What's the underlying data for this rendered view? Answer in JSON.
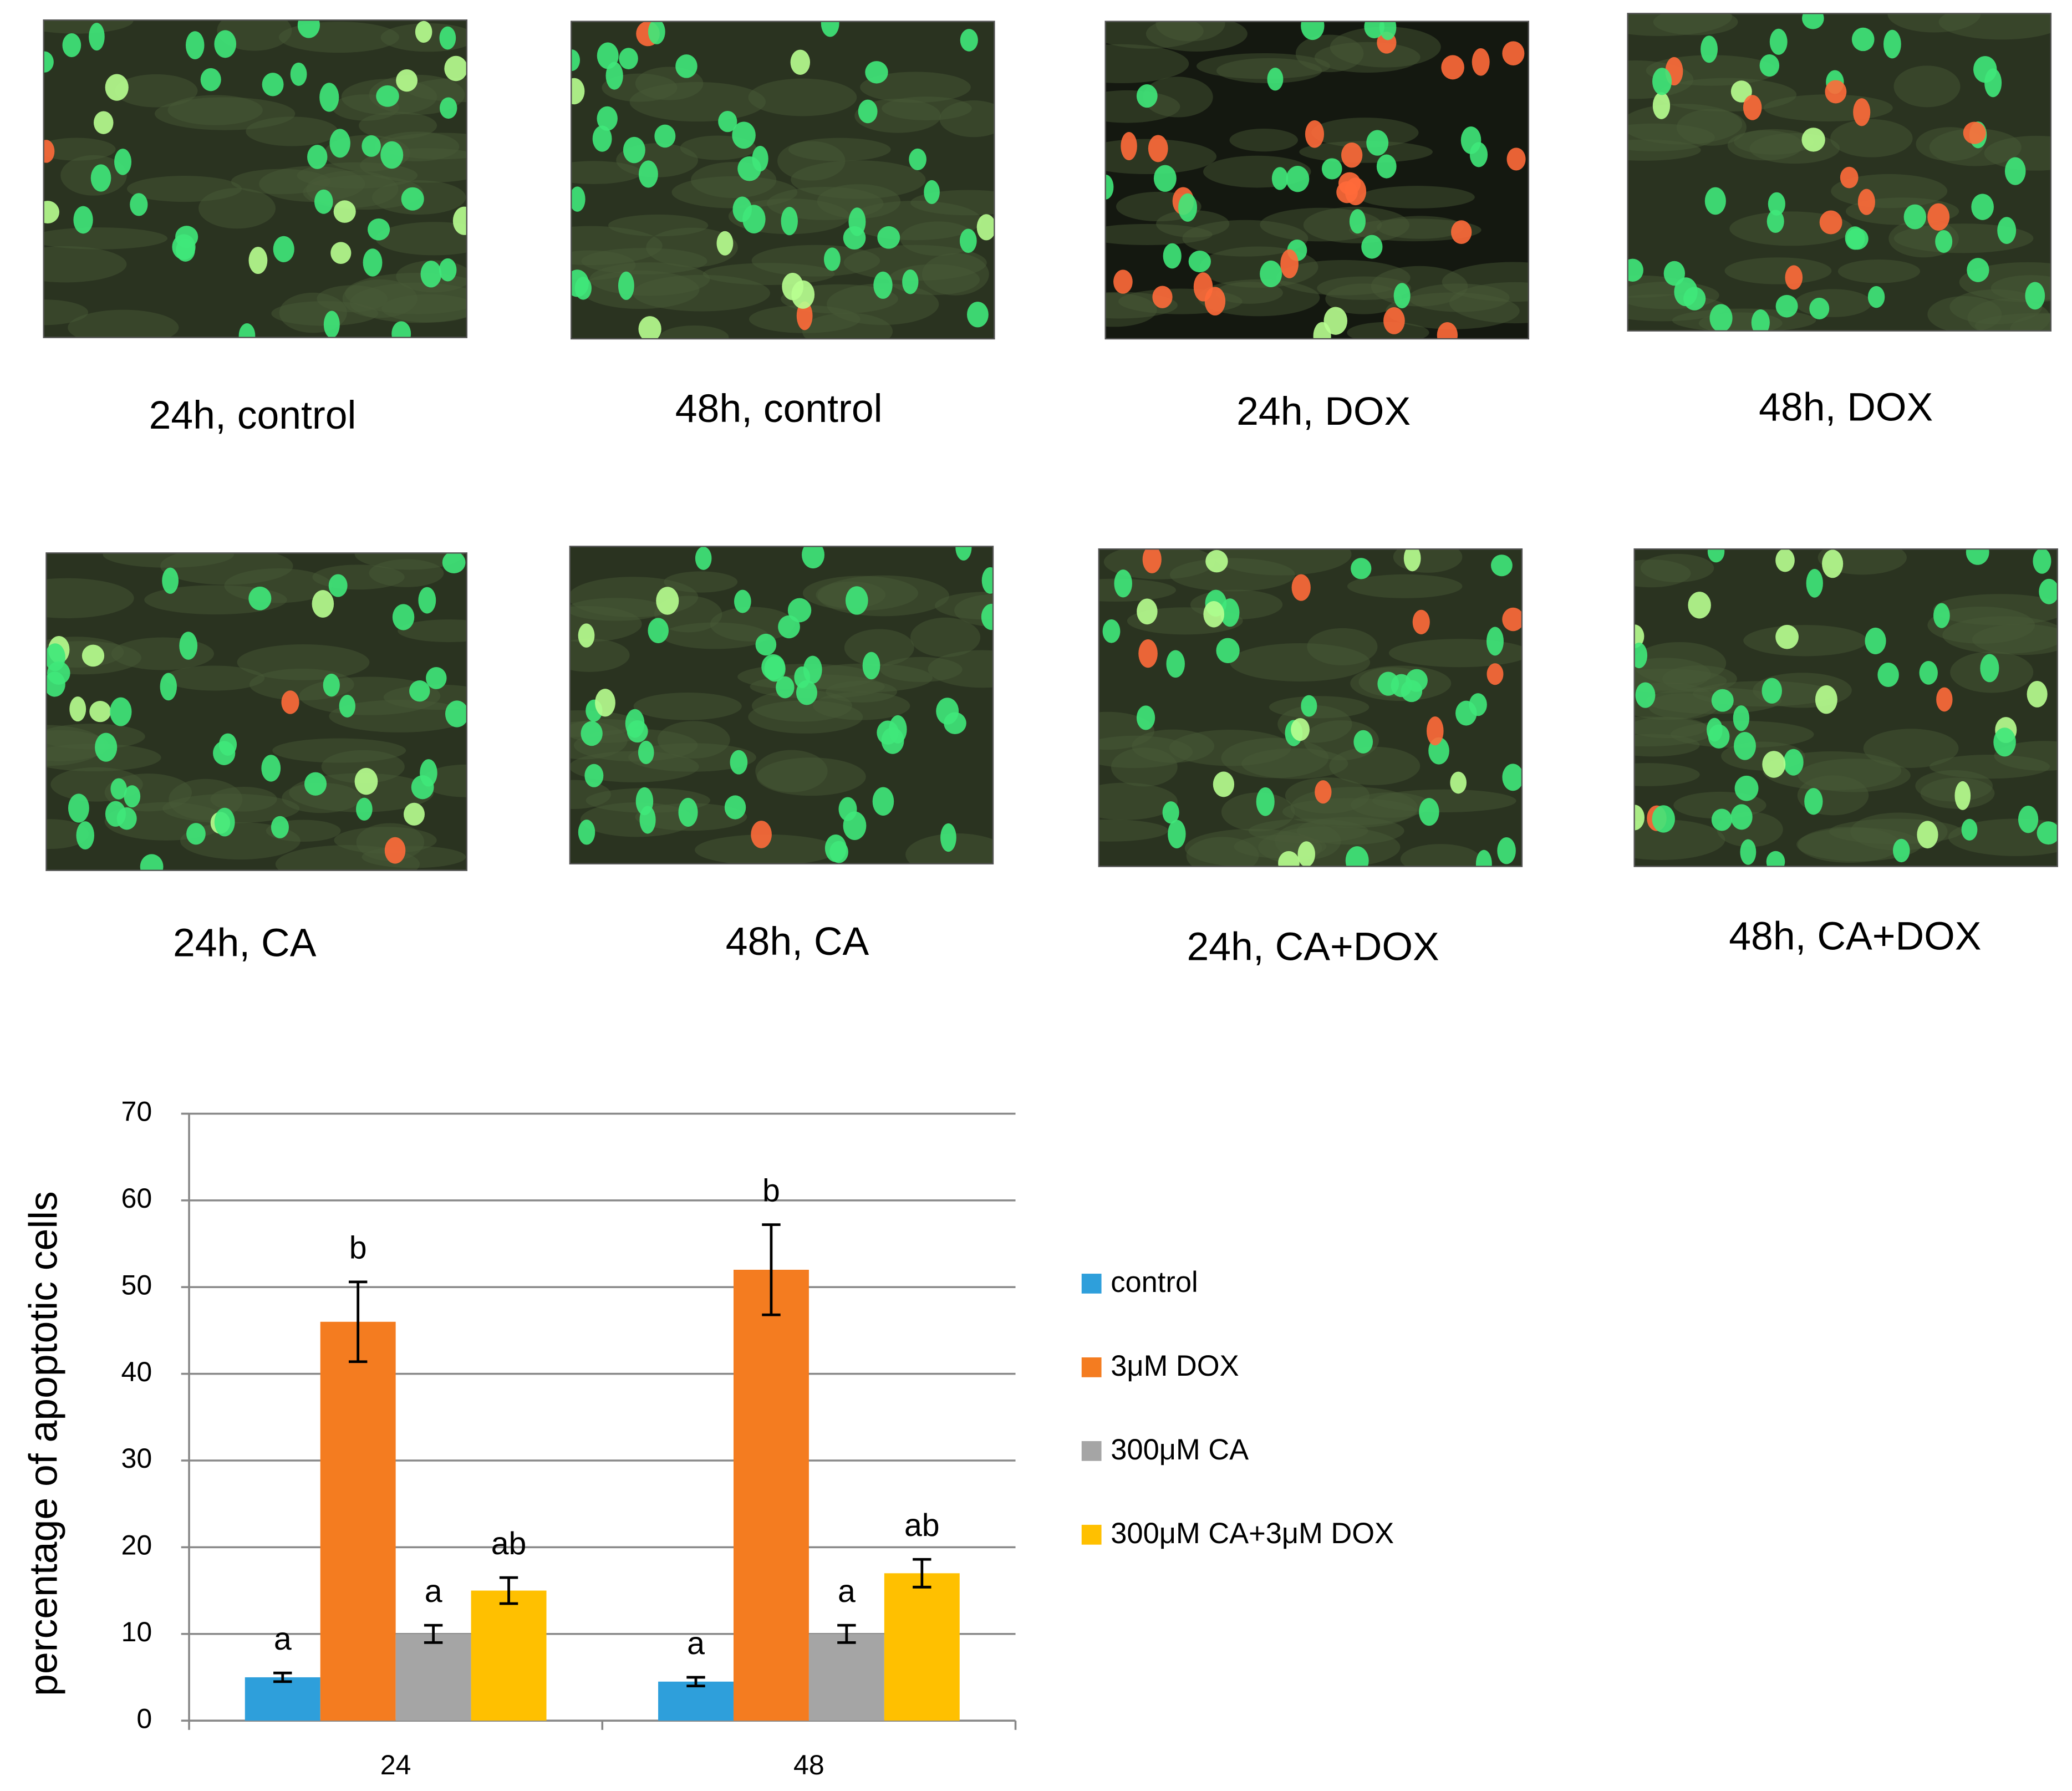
{
  "panels": [
    {
      "label": "24h, control"
    },
    {
      "label": "48h, control"
    },
    {
      "label": "24h, DOX"
    },
    {
      "label": "48h, DOX"
    },
    {
      "label": "24h, CA"
    },
    {
      "label": "48h, CA"
    },
    {
      "label": "24h, CA+DOX"
    },
    {
      "label": "48h, CA+DOX"
    }
  ],
  "chart_data": {
    "type": "bar",
    "y_label": "percentage of apoptotic cells",
    "categories": [
      "24",
      "48"
    ],
    "series": [
      {
        "name": "control",
        "color": "#2e9fdb",
        "values": [
          5,
          4.5
        ],
        "errors": [
          0.5,
          0.5
        ],
        "annotations": [
          "a",
          "a"
        ]
      },
      {
        "name": "3μM DOX",
        "color": "#f47c20",
        "values": [
          46,
          52
        ],
        "errors": [
          4.6,
          5.2
        ],
        "annotations": [
          "b",
          "b"
        ]
      },
      {
        "name": "300μM CA",
        "color": "#a5a5a5",
        "values": [
          10,
          10
        ],
        "errors": [
          1,
          1
        ],
        "annotations": [
          "a",
          "a"
        ]
      },
      {
        "name": "300μM CA+3μM DOX",
        "color": "#ffc000",
        "values": [
          15,
          17
        ],
        "errors": [
          1.5,
          1.6
        ],
        "annotations": [
          "ab",
          "ab"
        ]
      }
    ],
    "ylim": [
      0,
      70
    ],
    "yticks": [
      0,
      10,
      20,
      30,
      40,
      50,
      60,
      70
    ],
    "grid": true,
    "legend": "right"
  }
}
